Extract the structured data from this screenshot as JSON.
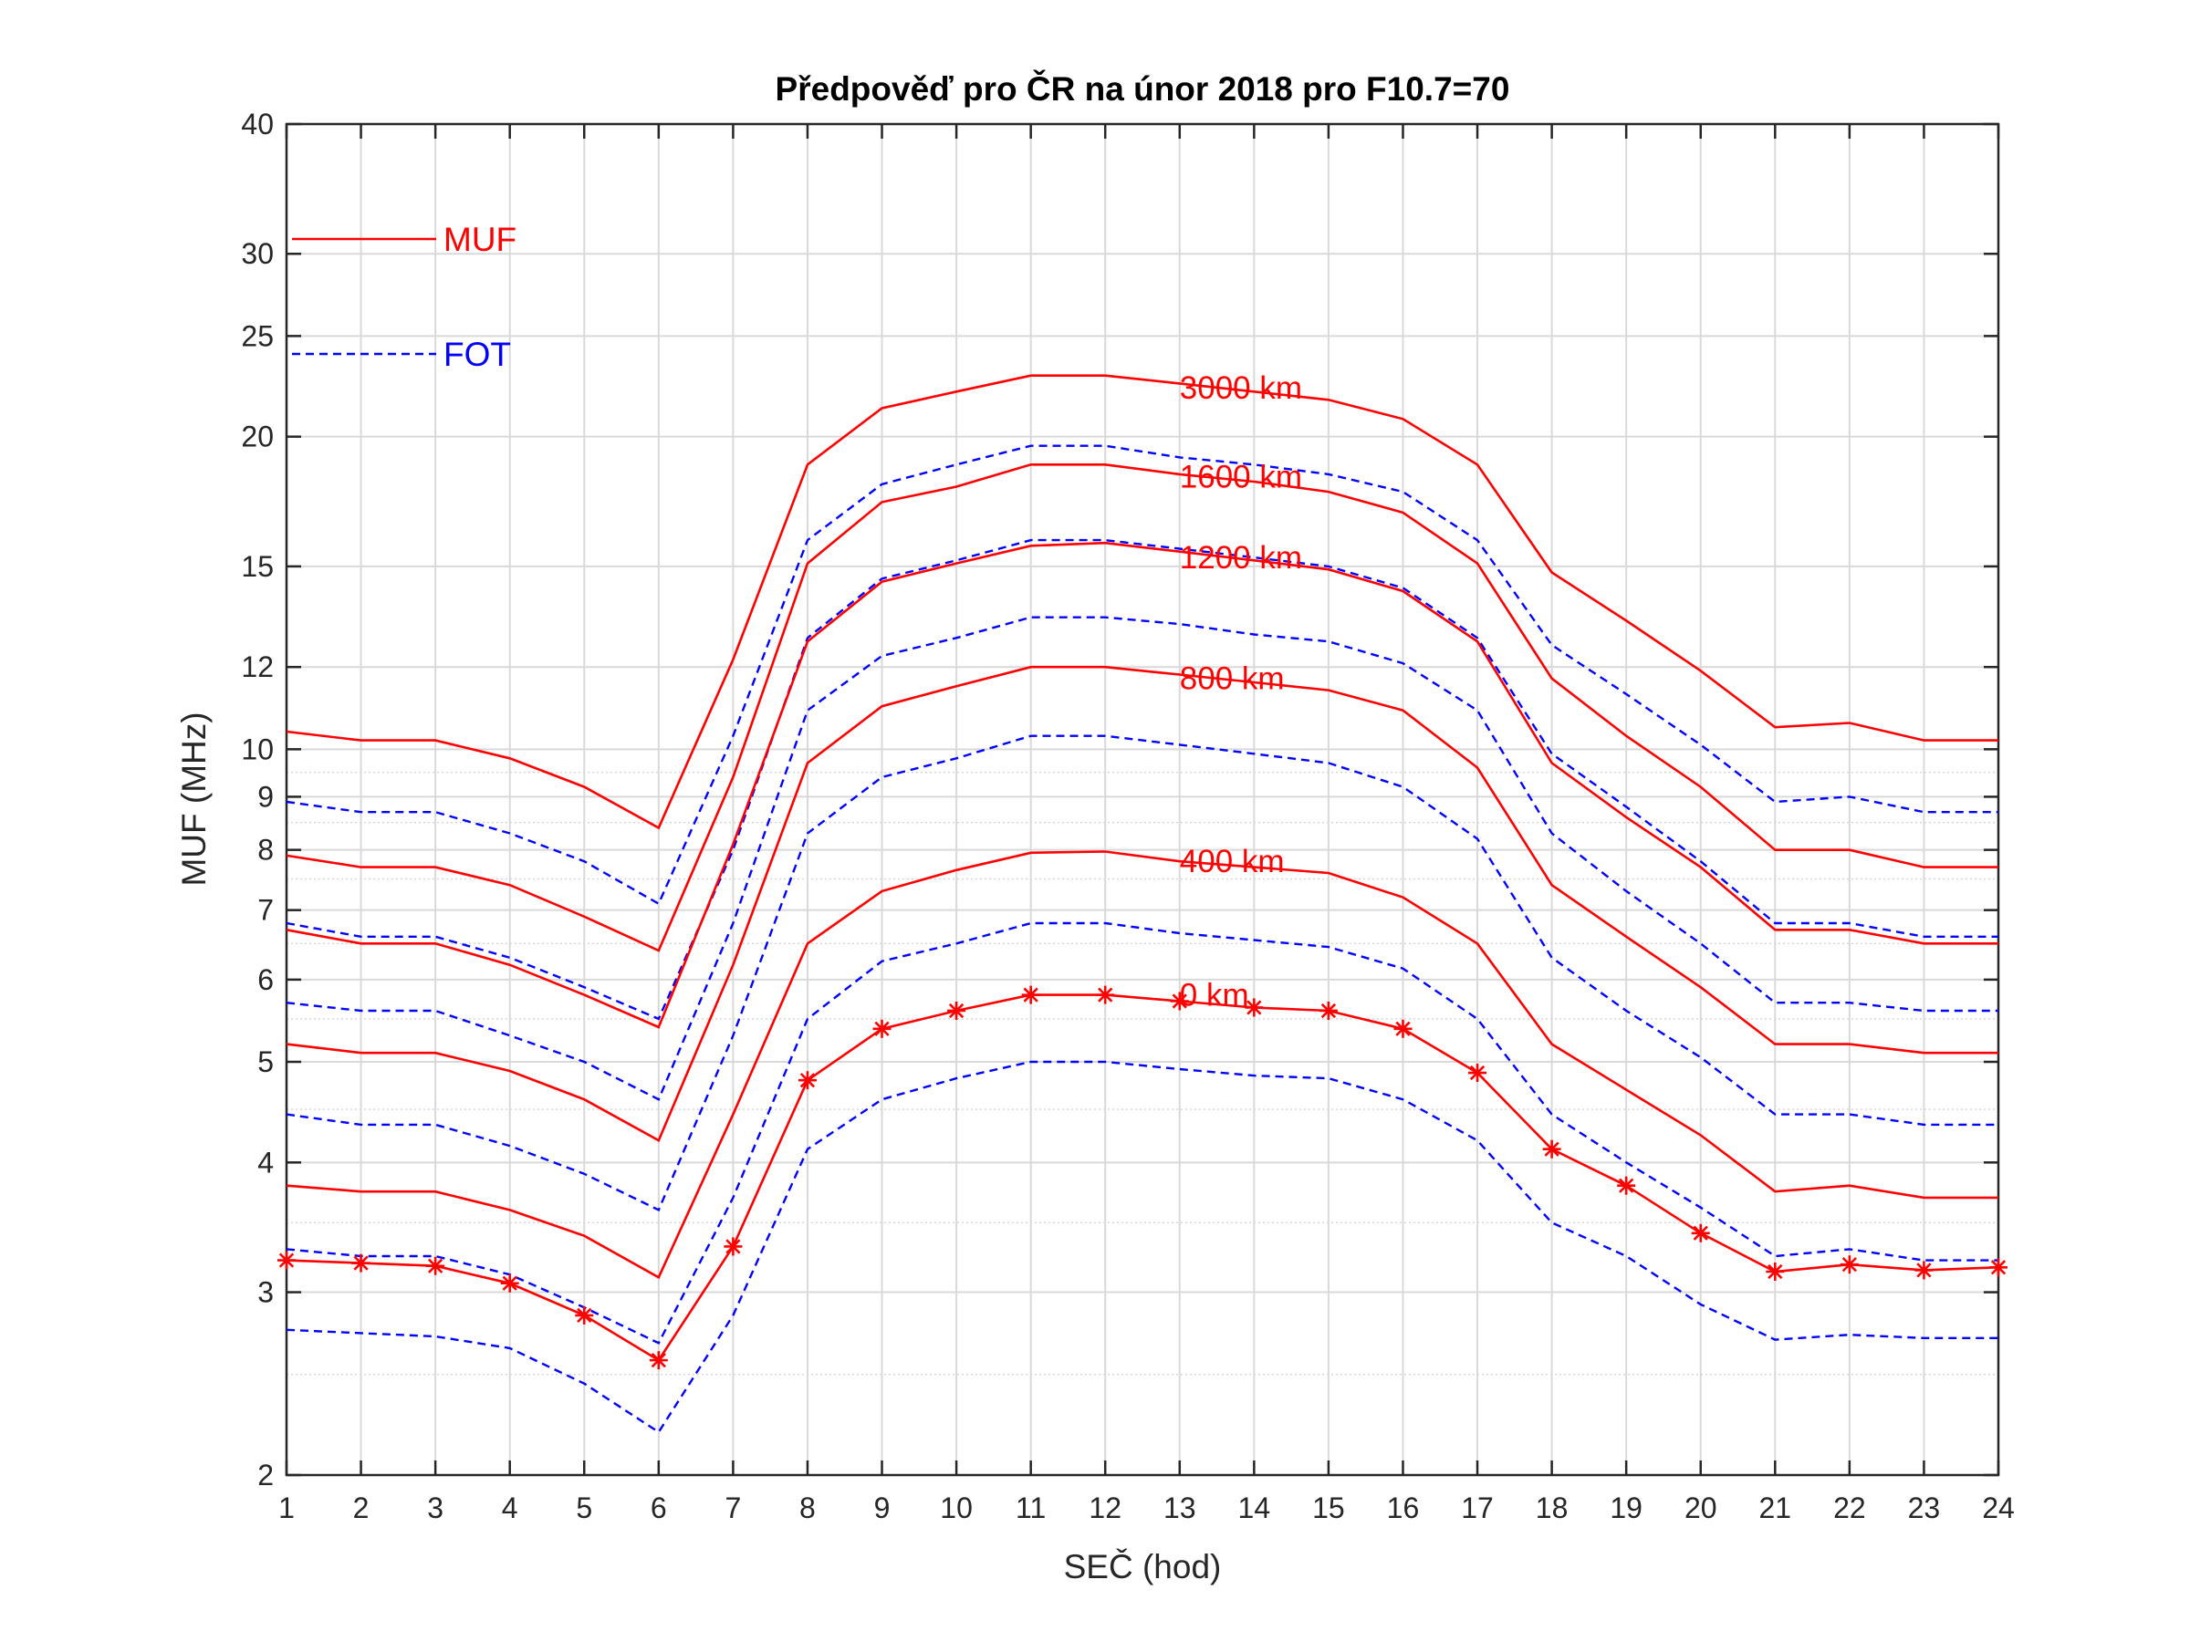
{
  "chart_data": {
    "type": "line",
    "title": "Předpověď pro ČR na únor 2018 pro F10.7=70",
    "xlabel": "SEČ (hod)",
    "ylabel": "MUF (MHz)",
    "xlim": [
      1,
      24
    ],
    "ylim": [
      2,
      40
    ],
    "yscale": "log",
    "x_ticks": [
      "1",
      "2",
      "3",
      "4",
      "5",
      "6",
      "7",
      "8",
      "9",
      "10",
      "11",
      "12",
      "13",
      "14",
      "15",
      "16",
      "17",
      "18",
      "19",
      "20",
      "21",
      "22",
      "23",
      "24"
    ],
    "y_ticks": [
      {
        "value": 2,
        "label": "2"
      },
      {
        "value": 3,
        "label": "3"
      },
      {
        "value": 4,
        "label": "4"
      },
      {
        "value": 5,
        "label": "5"
      },
      {
        "value": 6,
        "label": "6"
      },
      {
        "value": 7,
        "label": "7"
      },
      {
        "value": 8,
        "label": "8"
      },
      {
        "value": 9,
        "label": "9"
      },
      {
        "value": 10,
        "label": "10"
      },
      {
        "value": 12,
        "label": "12"
      },
      {
        "value": 15,
        "label": "15"
      },
      {
        "value": 20,
        "label": "20"
      },
      {
        "value": 25,
        "label": "25"
      },
      {
        "value": 30,
        "label": "30"
      },
      {
        "value": 40,
        "label": "40"
      }
    ],
    "grid": true,
    "colors": {
      "muf": "#ff0000",
      "fot": "#0000ff"
    },
    "x": [
      1,
      2,
      3,
      4,
      5,
      6,
      7,
      8,
      9,
      10,
      11,
      12,
      13,
      14,
      15,
      16,
      17,
      18,
      19,
      20,
      21,
      22,
      23,
      24
    ],
    "series": [
      {
        "kind": "MUF",
        "distance": "3000 km",
        "values": [
          10.4,
          10.2,
          10.2,
          9.8,
          9.2,
          8.4,
          12.2,
          18.8,
          21.3,
          22.1,
          22.9,
          22.9,
          22.5,
          22.1,
          21.7,
          20.8,
          18.8,
          14.8,
          13.3,
          11.9,
          10.5,
          10.6,
          10.2,
          10.2
        ]
      },
      {
        "kind": "FOT",
        "distance": "3000 km",
        "values": [
          8.9,
          8.7,
          8.7,
          8.3,
          7.8,
          7.1,
          10.3,
          15.9,
          18.0,
          18.8,
          19.6,
          19.6,
          19.1,
          18.8,
          18.4,
          17.7,
          15.9,
          12.6,
          11.3,
          10.1,
          8.9,
          9.0,
          8.7,
          8.7
        ]
      },
      {
        "kind": "MUF",
        "distance": "1600 km",
        "values": [
          7.9,
          7.7,
          7.7,
          7.4,
          6.9,
          6.4,
          9.4,
          15.1,
          17.3,
          17.9,
          18.8,
          18.8,
          18.4,
          18.1,
          17.7,
          16.9,
          15.1,
          11.7,
          10.3,
          9.2,
          8.0,
          8.0,
          7.7,
          7.7
        ]
      },
      {
        "kind": "FOT",
        "distance": "1600 km",
        "values": [
          6.8,
          6.6,
          6.6,
          6.3,
          5.9,
          5.5,
          8.0,
          12.8,
          14.6,
          15.2,
          15.9,
          15.9,
          15.6,
          15.3,
          15.0,
          14.3,
          12.8,
          9.9,
          8.8,
          7.8,
          6.8,
          6.8,
          6.6,
          6.6
        ]
      },
      {
        "kind": "MUF",
        "distance": "1200 km",
        "values": [
          6.7,
          6.5,
          6.5,
          6.2,
          5.8,
          5.4,
          8.1,
          12.7,
          14.5,
          15.1,
          15.7,
          15.8,
          15.5,
          15.2,
          14.9,
          14.2,
          12.7,
          9.7,
          8.6,
          7.7,
          6.7,
          6.7,
          6.5,
          6.5
        ]
      },
      {
        "kind": "FOT",
        "distance": "1200 km",
        "values": [
          5.7,
          5.6,
          5.6,
          5.3,
          5.0,
          4.6,
          6.8,
          10.9,
          12.3,
          12.8,
          13.4,
          13.4,
          13.2,
          12.9,
          12.7,
          12.1,
          10.9,
          8.3,
          7.3,
          6.5,
          5.7,
          5.7,
          5.6,
          5.6
        ]
      },
      {
        "kind": "MUF",
        "distance": "800 km",
        "values": [
          5.2,
          5.1,
          5.1,
          4.9,
          4.6,
          4.2,
          6.2,
          9.7,
          11.0,
          11.5,
          12.0,
          12.0,
          11.8,
          11.6,
          11.4,
          10.9,
          9.6,
          7.4,
          6.6,
          5.9,
          5.2,
          5.2,
          5.1,
          5.1
        ]
      },
      {
        "kind": "FOT",
        "distance": "800 km",
        "values": [
          4.45,
          4.35,
          4.35,
          4.15,
          3.9,
          3.6,
          5.3,
          8.3,
          9.4,
          9.8,
          10.3,
          10.3,
          10.1,
          9.9,
          9.7,
          9.2,
          8.2,
          6.3,
          5.6,
          5.05,
          4.45,
          4.45,
          4.35,
          4.35
        ]
      },
      {
        "kind": "MUF",
        "distance": "400 km",
        "values": [
          3.8,
          3.75,
          3.75,
          3.6,
          3.4,
          3.1,
          4.45,
          6.5,
          7.3,
          7.65,
          7.95,
          7.97,
          7.8,
          7.7,
          7.6,
          7.2,
          6.5,
          5.2,
          4.7,
          4.25,
          3.75,
          3.8,
          3.7,
          3.7
        ]
      },
      {
        "kind": "FOT",
        "distance": "400 km",
        "values": [
          3.3,
          3.25,
          3.25,
          3.12,
          2.9,
          2.68,
          3.7,
          5.5,
          6.25,
          6.5,
          6.8,
          6.8,
          6.65,
          6.55,
          6.45,
          6.15,
          5.5,
          4.45,
          4.0,
          3.62,
          3.25,
          3.3,
          3.22,
          3.22
        ]
      },
      {
        "kind": "MUF",
        "distance": "0 km",
        "markers": true,
        "values": [
          3.22,
          3.2,
          3.18,
          3.06,
          2.85,
          2.58,
          3.32,
          4.8,
          5.38,
          5.6,
          5.8,
          5.8,
          5.72,
          5.64,
          5.6,
          5.38,
          4.88,
          4.12,
          3.8,
          3.42,
          3.14,
          3.19,
          3.15,
          3.17
        ]
      },
      {
        "kind": "FOT",
        "distance": "0 km",
        "values": [
          2.76,
          2.74,
          2.72,
          2.65,
          2.45,
          2.2,
          2.85,
          4.12,
          4.6,
          4.82,
          5.0,
          5.0,
          4.92,
          4.85,
          4.82,
          4.6,
          4.2,
          3.5,
          3.25,
          2.92,
          2.7,
          2.73,
          2.71,
          2.71
        ]
      }
    ],
    "distance_labels": [
      {
        "text": "3000 km",
        "x": 13,
        "y": 22.3
      },
      {
        "text": "1600 km",
        "x": 13,
        "y": 18.3
      },
      {
        "text": "1200 km",
        "x": 13,
        "y": 15.3
      },
      {
        "text": "800 km",
        "x": 13,
        "y": 11.7
      },
      {
        "text": "400 km",
        "x": 13,
        "y": 7.8
      },
      {
        "text": "0 km",
        "x": 13,
        "y": 5.8
      }
    ],
    "legend": {
      "placement": "top-left",
      "entries": [
        {
          "label": "MUF",
          "style": "solid",
          "color": "#ff0000"
        },
        {
          "label": "FOT",
          "style": "dashed",
          "color": "#0000ff"
        }
      ]
    }
  }
}
